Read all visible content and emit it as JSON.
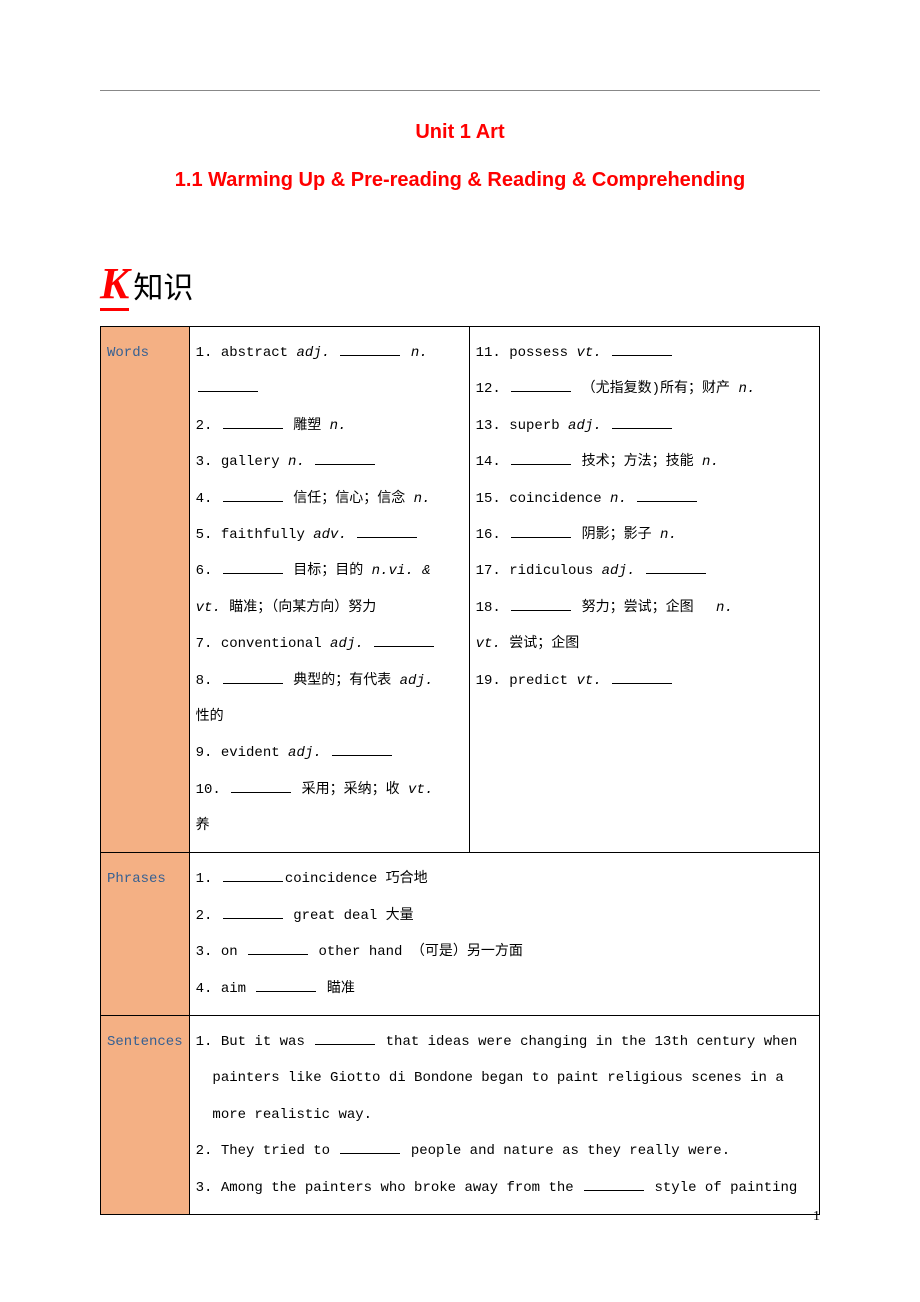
{
  "header": {
    "title_main": "Unit 1  Art",
    "title_sub": "1.1  Warming Up & Pre-reading & Reading & Comprehending"
  },
  "k_section": {
    "letter": "K",
    "label": "知识"
  },
  "table": {
    "rows": [
      {
        "header": "Words",
        "col1_items": [
          {
            "num": "1.",
            "text": "abstract ",
            "italic": "adj.",
            "blank": true,
            "after_italic": " n.",
            "extra_blank": true
          },
          {
            "num": "2.",
            "blank_first": true,
            "italic": " n.",
            "text": " 雕塑"
          },
          {
            "num": "3.",
            "text": "gallery ",
            "italic": "n.",
            "blank": true
          },
          {
            "num": "4.",
            "blank_first": true,
            "italic": " n.",
            "text": " 信任；信心；信念"
          },
          {
            "num": "5.",
            "text": "faithfully ",
            "italic": "adv.",
            "blank": true
          },
          {
            "num": "6.",
            "blank_first": true,
            "italic": " n.",
            "text": " 目标；目的 ",
            "italic2": "vi. &"
          },
          {
            "text_only": "vt.",
            "italic_start": true,
            "after": " 瞄准；（向某方向）努力"
          },
          {
            "num": "7.",
            "text": "conventional ",
            "italic": "adj.",
            "blank": true
          },
          {
            "num": "8.",
            "blank_first": true,
            "italic": " adj.",
            "text": " 典型的；有代表"
          },
          {
            "text_only": "性的"
          },
          {
            "num": "9.",
            "text": "evident ",
            "italic": "adj.",
            "blank": true
          },
          {
            "num": "10.",
            "blank_first": true,
            "italic": " vt.",
            "text": " 采用；采纳；收"
          },
          {
            "text_only": "养"
          }
        ],
        "col2_items": [
          {
            "num": "11.",
            "text": "possess ",
            "italic": "vt.",
            "blank": true
          },
          {
            "num": "12.",
            "blank_first": true,
            "italic": " n.",
            "text": " （尤指复数)所有；财产"
          },
          {
            "num": "13.",
            "text": "superb ",
            "italic": "adj.",
            "blank": true
          },
          {
            "num": "14.",
            "blank_first": true,
            "italic": " n.",
            "text": " 技术；方法；技能"
          },
          {
            "num": "15.",
            "text": "coincidence ",
            "italic": "n.",
            "blank": true
          },
          {
            "num": "16.",
            "blank_first": true,
            "italic": " n.",
            "text": " 阴影；影子"
          },
          {
            "num": "17.",
            "text": "ridiculous ",
            "italic": "adj.",
            "blank": true
          },
          {
            "num": "18.",
            "blank_first": true,
            "italic": " n.",
            "text": " 努力；尝试；企图　"
          },
          {
            "text_only": "vt.",
            "italic_start": true,
            "after": " 尝试；企图"
          },
          {
            "num": "19.",
            "text": "predict ",
            "italic": "vt.",
            "blank": true
          }
        ]
      },
      {
        "header": "Phrases",
        "full_items": [
          {
            "num": "1.",
            "blank_first": true,
            "text": "coincidence 巧合地"
          },
          {
            "num": "2.",
            "blank_first": true,
            "text": " great deal 大量"
          },
          {
            "num": "3.",
            "text": "on ",
            "blank_mid": true,
            "after": " other hand （可是）另一方面"
          },
          {
            "num": "4.",
            "text": "aim ",
            "blank_mid": true,
            "after": " 瞄准"
          }
        ]
      },
      {
        "header": "Sentences",
        "full_items": [
          {
            "num": "1.",
            "text": "But it was ",
            "blank_mid": true,
            "after": " that ideas were changing in the 13th century when"
          },
          {
            "indent": true,
            "text": "painters like Giotto di Bondone began to paint religious scenes in a"
          },
          {
            "indent": true,
            "text": "more realistic way."
          },
          {
            "num": "2.",
            "text": "They tried to ",
            "blank_mid": true,
            "after": " people and nature as they really were."
          },
          {
            "num": "3.",
            "text": "Among the painters who broke away from the ",
            "blank_mid": true,
            "after": " style of painting"
          }
        ]
      }
    ]
  },
  "page_number": "1",
  "colors": {
    "title": "#ff0000",
    "header_bg": "#f4b084",
    "header_text": "#366092"
  }
}
